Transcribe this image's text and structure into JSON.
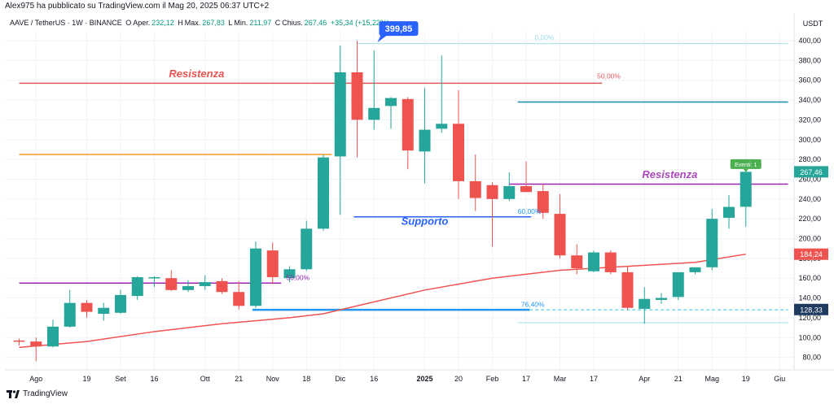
{
  "header": {
    "published_by": "Alex975 ha pubblicato su TradingView.com il Mag 20, 2025 06:37 UTC+2",
    "symbol": "AAVE / TetherUS · 1W · BINANCE",
    "open_label": "O",
    "open_prefix": "Aper.",
    "open": "232,12",
    "high_label": "H",
    "high_prefix": "Max.",
    "high": "267,83",
    "low_label": "L",
    "low_prefix": "Min.",
    "low": "211,97",
    "close_label": "C",
    "close_prefix": "Chius.",
    "close": "267,46",
    "change": "+35,34 (+15,22%)"
  },
  "footer": {
    "brand": "TradingView",
    "logo_icon": "tradingview-logo-icon"
  },
  "colors": {
    "up": "#26a69a",
    "down": "#ef5350",
    "ma": "#ef5350",
    "grid": "#f0f3fa"
  },
  "chart_data": {
    "type": "candlestick",
    "currency": "USDT",
    "ylim": [
      60,
      410
    ],
    "x_ticks": [
      {
        "i": 1,
        "label": "Ago"
      },
      {
        "i": 4,
        "label": "19"
      },
      {
        "i": 6,
        "label": "Set"
      },
      {
        "i": 8,
        "label": "16"
      },
      {
        "i": 11,
        "label": "Ott"
      },
      {
        "i": 13,
        "label": "21"
      },
      {
        "i": 15,
        "label": "Nov"
      },
      {
        "i": 17,
        "label": "18"
      },
      {
        "i": 19,
        "label": "Dic"
      },
      {
        "i": 21,
        "label": "16"
      },
      {
        "i": 24,
        "label": "2025"
      },
      {
        "i": 26,
        "label": "20"
      },
      {
        "i": 28,
        "label": "Feb"
      },
      {
        "i": 30,
        "label": "17"
      },
      {
        "i": 32,
        "label": "Mar"
      },
      {
        "i": 34,
        "label": "17"
      },
      {
        "i": 37,
        "label": "Apr"
      },
      {
        "i": 39,
        "label": "21"
      },
      {
        "i": 41,
        "label": "Mag"
      },
      {
        "i": 43,
        "label": "19"
      },
      {
        "i": 45,
        "label": "Giu"
      }
    ],
    "y_ticks": [
      80,
      100,
      120,
      140,
      160,
      180,
      200,
      220,
      240,
      260,
      280,
      300,
      320,
      340,
      360,
      380,
      400
    ],
    "candles": [
      {
        "o": 97,
        "h": 99,
        "l": 92,
        "c": 96
      },
      {
        "o": 96,
        "h": 100,
        "l": 76,
        "c": 91
      },
      {
        "o": 91,
        "h": 118,
        "l": 90,
        "c": 111
      },
      {
        "o": 111,
        "h": 148,
        "l": 110,
        "c": 135
      },
      {
        "o": 135,
        "h": 138,
        "l": 120,
        "c": 126
      },
      {
        "o": 124,
        "h": 135,
        "l": 117,
        "c": 130
      },
      {
        "o": 125,
        "h": 148,
        "l": 124,
        "c": 143
      },
      {
        "o": 142,
        "h": 162,
        "l": 138,
        "c": 161
      },
      {
        "o": 161,
        "h": 162,
        "l": 151,
        "c": 161
      },
      {
        "o": 160,
        "h": 168,
        "l": 147,
        "c": 148
      },
      {
        "o": 148,
        "h": 158,
        "l": 146,
        "c": 152
      },
      {
        "o": 152,
        "h": 163,
        "l": 148,
        "c": 156
      },
      {
        "o": 157,
        "h": 160,
        "l": 144,
        "c": 146
      },
      {
        "o": 146,
        "h": 157,
        "l": 128,
        "c": 132
      },
      {
        "o": 132,
        "h": 197,
        "l": 130,
        "c": 190
      },
      {
        "o": 188,
        "h": 196,
        "l": 154,
        "c": 161
      },
      {
        "o": 160,
        "h": 172,
        "l": 156,
        "c": 169
      },
      {
        "o": 169,
        "h": 218,
        "l": 167,
        "c": 210
      },
      {
        "o": 210,
        "h": 285,
        "l": 208,
        "c": 282
      },
      {
        "o": 283,
        "h": 395,
        "l": 224,
        "c": 368
      },
      {
        "o": 368,
        "h": 399.85,
        "l": 282,
        "c": 320
      },
      {
        "o": 320,
        "h": 390,
        "l": 310,
        "c": 332
      },
      {
        "o": 334,
        "h": 343,
        "l": 311,
        "c": 342
      },
      {
        "o": 341,
        "h": 343,
        "l": 270,
        "c": 289
      },
      {
        "o": 288,
        "h": 352,
        "l": 256,
        "c": 310
      },
      {
        "o": 311,
        "h": 385,
        "l": 307,
        "c": 316
      },
      {
        "o": 316,
        "h": 350,
        "l": 240,
        "c": 258
      },
      {
        "o": 258,
        "h": 285,
        "l": 228,
        "c": 241
      },
      {
        "o": 254,
        "h": 257,
        "l": 192,
        "c": 240
      },
      {
        "o": 240,
        "h": 267,
        "l": 238,
        "c": 253
      },
      {
        "o": 253,
        "h": 278,
        "l": 247,
        "c": 247
      },
      {
        "o": 248,
        "h": 255,
        "l": 220,
        "c": 226
      },
      {
        "o": 225,
        "h": 245,
        "l": 180,
        "c": 183
      },
      {
        "o": 183,
        "h": 194,
        "l": 164,
        "c": 170
      },
      {
        "o": 167,
        "h": 188,
        "l": 166,
        "c": 186
      },
      {
        "o": 186,
        "h": 188,
        "l": 164,
        "c": 166
      },
      {
        "o": 166,
        "h": 172,
        "l": 128,
        "c": 130
      },
      {
        "o": 129,
        "h": 151,
        "l": 114,
        "c": 139
      },
      {
        "o": 138,
        "h": 145,
        "l": 134,
        "c": 140
      },
      {
        "o": 141,
        "h": 163,
        "l": 138,
        "c": 166
      },
      {
        "o": 166,
        "h": 170,
        "l": 164,
        "c": 171
      },
      {
        "o": 171,
        "h": 230,
        "l": 168,
        "c": 220
      },
      {
        "o": 221,
        "h": 244,
        "l": 210,
        "c": 232
      },
      {
        "o": 232.12,
        "h": 267.83,
        "l": 211.97,
        "c": 267.46
      }
    ],
    "ma_series": [
      {
        "i": 0,
        "v": 90
      },
      {
        "i": 4,
        "v": 96
      },
      {
        "i": 8,
        "v": 106
      },
      {
        "i": 12,
        "v": 114
      },
      {
        "i": 16,
        "v": 120
      },
      {
        "i": 18,
        "v": 124
      },
      {
        "i": 20,
        "v": 132
      },
      {
        "i": 24,
        "v": 148
      },
      {
        "i": 28,
        "v": 160
      },
      {
        "i": 32,
        "v": 168
      },
      {
        "i": 36,
        "v": 172
      },
      {
        "i": 40,
        "v": 176
      },
      {
        "i": 43,
        "v": 184.24
      }
    ],
    "hlines": [
      {
        "v": 357,
        "x0": 0,
        "x1": 34.5,
        "color": "#e05a5a",
        "w": 1.5
      },
      {
        "v": 285,
        "x0": 0,
        "x1": 18.5,
        "color": "#f59a23",
        "w": 1.5
      },
      {
        "v": 155,
        "x0": 0,
        "x1": 15.5,
        "color": "#9c27b0",
        "w": 1.5
      },
      {
        "v": 397,
        "x0": 20,
        "x1": 45.5,
        "color": "#b2e4ec",
        "w": 1.2
      },
      {
        "v": 338,
        "x0": 29.5,
        "x1": 45.5,
        "color": "#1e88a8",
        "w": 1.5
      },
      {
        "v": 255,
        "x0": 29,
        "x1": 45.5,
        "color": "#9c27b0",
        "w": 1.5
      },
      {
        "v": 222,
        "x0": 19.8,
        "x1": 30.3,
        "color": "#2962ff",
        "w": 1.5
      },
      {
        "v": 128,
        "x0": 13.8,
        "x1": 30.2,
        "color": "#2196f3",
        "w": 2.5
      },
      {
        "v": 115,
        "x0": 29.5,
        "x1": 45.5,
        "color": "#b2e4ec",
        "w": 1.2
      },
      {
        "v": 128,
        "x0": 30.2,
        "x1": 45.5,
        "color": "#26c6da",
        "w": 1,
        "dash": true
      }
    ],
    "fib_labels": [
      {
        "text": "0,00%",
        "i": 30.5,
        "v": 401,
        "color": "#9fdcea"
      },
      {
        "text": "50,00%",
        "i": 34.2,
        "v": 362,
        "color": "#e05a5a"
      },
      {
        "text": "50,00%",
        "i": 15.8,
        "v": 158,
        "color": "#9c27b0"
      },
      {
        "text": "60,00%",
        "i": 29.5,
        "v": 225,
        "color": "#2196f3"
      },
      {
        "text": "76,40%",
        "i": 29.7,
        "v": 131,
        "color": "#2196f3"
      }
    ],
    "annotations": [
      {
        "text": "Resistenza",
        "i": 10.5,
        "v": 363,
        "color": "#ef5350"
      },
      {
        "text": "Supporto",
        "i": 24,
        "v": 214,
        "color": "#2962ff"
      },
      {
        "text": "Resistenza",
        "i": 38.5,
        "v": 261,
        "color": "#ab47bc"
      }
    ],
    "high_marker": {
      "label": "399,85",
      "i": 21.3,
      "v": 399.85
    },
    "events_label": "Eventi: 1",
    "price_badges": [
      {
        "label": "267,46",
        "v": 267.46,
        "color": "#26a69a"
      },
      {
        "label": "184,24",
        "v": 184.24,
        "color": "#ef5350"
      },
      {
        "label": "128,33",
        "v": 128.33,
        "color": "#1e3a5f"
      }
    ]
  }
}
